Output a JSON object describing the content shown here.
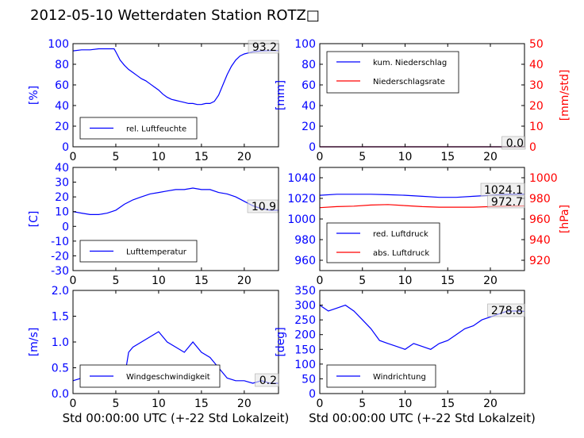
{
  "title": "2012-05-10 Wetterdaten Station ROTZ□",
  "chart_data": [
    {
      "id": "humidity",
      "type": "line",
      "xlim": [
        0,
        24
      ],
      "ylim": [
        0,
        100
      ],
      "yticks": [
        0,
        20,
        40,
        60,
        80,
        100
      ],
      "xticks": [
        0,
        5,
        10,
        15,
        20
      ],
      "ylabel": "[%]",
      "ylabel_color": "#0000ff",
      "current_value": "93.2",
      "legend": {
        "placement": "lower-left"
      },
      "series": [
        {
          "name": "rel. Luftfeuchte",
          "color": "#0000ff",
          "x": [
            0,
            1,
            2,
            3,
            4,
            4.8,
            5,
            5.5,
            6,
            6.5,
            7,
            7.5,
            8,
            8.5,
            9,
            9.5,
            10,
            10.5,
            11,
            11.5,
            12,
            12.5,
            13,
            13.5,
            14,
            14.5,
            15,
            15.5,
            16,
            16.5,
            17,
            17.5,
            18,
            18.5,
            19,
            19.5,
            20,
            20.5,
            21,
            22,
            23,
            24
          ],
          "y": [
            93,
            94,
            94,
            95,
            95,
            95,
            92,
            84,
            79,
            75,
            72,
            69,
            66,
            64,
            61,
            58,
            55,
            51,
            48,
            46,
            45,
            44,
            43,
            42,
            42,
            41,
            41,
            42,
            42,
            44,
            50,
            60,
            70,
            78,
            84,
            88,
            90,
            91,
            92,
            93,
            93.2,
            93.2
          ]
        }
      ]
    },
    {
      "id": "precip",
      "type": "line",
      "xlim": [
        0,
        24
      ],
      "ylim": [
        0,
        100
      ],
      "yticks": [
        0,
        20,
        40,
        60,
        80,
        100
      ],
      "y2lim": [
        0,
        50
      ],
      "y2ticks": [
        0,
        10,
        20,
        30,
        40,
        50
      ],
      "xticks": [
        0,
        5,
        10,
        15,
        20
      ],
      "ylabel": "[mm]",
      "ylabel_color": "#0000ff",
      "y2label": "[mm/std]",
      "y2label_color": "#ff0000",
      "current_value": "0.0",
      "current_value_2": "0",
      "legend": {
        "placement": "upper-left"
      },
      "series": [
        {
          "name": "kum. Niederschlag",
          "color": "#0000ff",
          "axis": "left",
          "x": [
            0,
            24
          ],
          "y": [
            0,
            0
          ]
        },
        {
          "name": "Niederschlagsrate",
          "color": "#ff0000",
          "axis": "right",
          "x": [
            0,
            24
          ],
          "y": [
            0,
            0
          ]
        }
      ]
    },
    {
      "id": "temperature",
      "type": "line",
      "xlim": [
        0,
        24
      ],
      "ylim": [
        -30,
        40
      ],
      "yticks": [
        -30,
        -20,
        -10,
        0,
        10,
        20,
        30,
        40
      ],
      "xticks": [
        0,
        5,
        10,
        15,
        20
      ],
      "ylabel": "[C]",
      "ylabel_color": "#0000ff",
      "current_value": "10.9",
      "legend": {
        "placement": "lower-left"
      },
      "series": [
        {
          "name": "Lufttemperatur",
          "color": "#0000ff",
          "x": [
            0,
            1,
            2,
            3,
            4,
            5,
            6,
            7,
            8,
            9,
            10,
            11,
            12,
            13,
            14,
            15,
            16,
            17,
            18,
            19,
            20,
            21,
            22,
            23,
            24
          ],
          "y": [
            10,
            9,
            8,
            8,
            9,
            11,
            15,
            18,
            20,
            22,
            23,
            24,
            25,
            25,
            26,
            25,
            25,
            23,
            22,
            20,
            17,
            14,
            12,
            11,
            10.9
          ]
        }
      ]
    },
    {
      "id": "pressure",
      "type": "line",
      "xlim": [
        0,
        24
      ],
      "ylim": [
        950,
        1050
      ],
      "yticks": [
        960,
        980,
        1000,
        1020,
        1040
      ],
      "y2lim": [
        910,
        1010
      ],
      "y2ticks": [
        920,
        940,
        960,
        980,
        1000
      ],
      "xticks": [
        0,
        5,
        10,
        15,
        20
      ],
      "y2label": "[hPa]",
      "y2label_color": "#ff0000",
      "current_value": "1024.1",
      "current_value_2": "972.7",
      "legend": {
        "placement": "lower-left"
      },
      "series": [
        {
          "name": "red. Luftdruck",
          "color": "#0000ff",
          "axis": "left",
          "x": [
            0,
            2,
            4,
            6,
            8,
            10,
            12,
            14,
            16,
            18,
            20,
            22,
            24
          ],
          "y": [
            1023,
            1024,
            1024,
            1024,
            1023.5,
            1023,
            1022,
            1021,
            1021,
            1022,
            1023,
            1024,
            1024.1
          ]
        },
        {
          "name": "abs. Luftdruck",
          "color": "#ff0000",
          "axis": "right",
          "x": [
            0,
            2,
            4,
            6,
            8,
            10,
            12,
            14,
            16,
            18,
            20,
            22,
            24
          ],
          "y": [
            971,
            972,
            972.5,
            973.5,
            974,
            973,
            972,
            971.5,
            971.5,
            971.5,
            972,
            972.5,
            972.7
          ]
        }
      ]
    },
    {
      "id": "wind_speed",
      "type": "line",
      "xlim": [
        0,
        24
      ],
      "ylim": [
        0,
        2.0
      ],
      "yticks": [
        0.0,
        0.5,
        1.0,
        1.5,
        2.0
      ],
      "xticks": [
        0,
        5,
        10,
        15,
        20
      ],
      "xlabel": "Std 00:00:00 UTC (+-22 Std Lokalzeit)",
      "ylabel": "[m/s]",
      "ylabel_color": "#0000ff",
      "current_value": "0.2",
      "legend": {
        "placement": "lower-left"
      },
      "series": [
        {
          "name": "Windgeschwindigkeit",
          "color": "#0000ff",
          "x": [
            0,
            1,
            2,
            3,
            4,
            5,
            6,
            6.5,
            7,
            8,
            9,
            10,
            11,
            12,
            13,
            14,
            15,
            16,
            17,
            18,
            19,
            20,
            21,
            22,
            23,
            24
          ],
          "y": [
            0.25,
            0.3,
            0.25,
            0.2,
            0.2,
            0.15,
            0.3,
            0.8,
            0.9,
            1.0,
            1.1,
            1.2,
            1.0,
            0.9,
            0.8,
            1.0,
            0.8,
            0.7,
            0.5,
            0.3,
            0.25,
            0.25,
            0.2,
            0.25,
            0.2,
            0.2
          ]
        }
      ]
    },
    {
      "id": "wind_dir",
      "type": "line",
      "xlim": [
        0,
        24
      ],
      "ylim": [
        0,
        350
      ],
      "yticks": [
        0,
        50,
        100,
        150,
        200,
        250,
        300,
        350
      ],
      "xticks": [
        0,
        5,
        10,
        15,
        20
      ],
      "xlabel": "Std 00:00:00 UTC (+-22 Std Lokalzeit)",
      "ylabel": "[deg]",
      "ylabel_color": "#0000ff",
      "current_value": "278.8",
      "legend": {
        "placement": "lower-left"
      },
      "series": [
        {
          "name": "Windrichtung",
          "color": "#0000ff",
          "x": [
            0,
            1,
            2,
            3,
            4,
            5,
            6,
            7,
            8,
            9,
            10,
            11,
            12,
            13,
            14,
            15,
            16,
            17,
            18,
            19,
            20,
            21,
            22,
            23,
            24
          ],
          "y": [
            300,
            280,
            290,
            300,
            280,
            250,
            220,
            180,
            170,
            160,
            150,
            170,
            160,
            150,
            170,
            180,
            200,
            220,
            230,
            250,
            260,
            270,
            280,
            280,
            278.8
          ]
        }
      ]
    }
  ]
}
